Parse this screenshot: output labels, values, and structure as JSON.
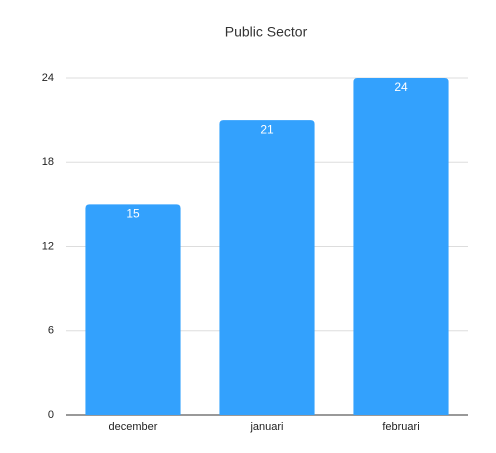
{
  "chart_data": {
    "type": "bar",
    "title": "Public Sector",
    "categories": [
      "december",
      "januari",
      "februari"
    ],
    "values": [
      15,
      21,
      24
    ],
    "color": "#33a1fd",
    "ylim": [
      0,
      24
    ],
    "yticks": [
      0,
      6,
      12,
      18,
      24
    ],
    "grid": true
  }
}
